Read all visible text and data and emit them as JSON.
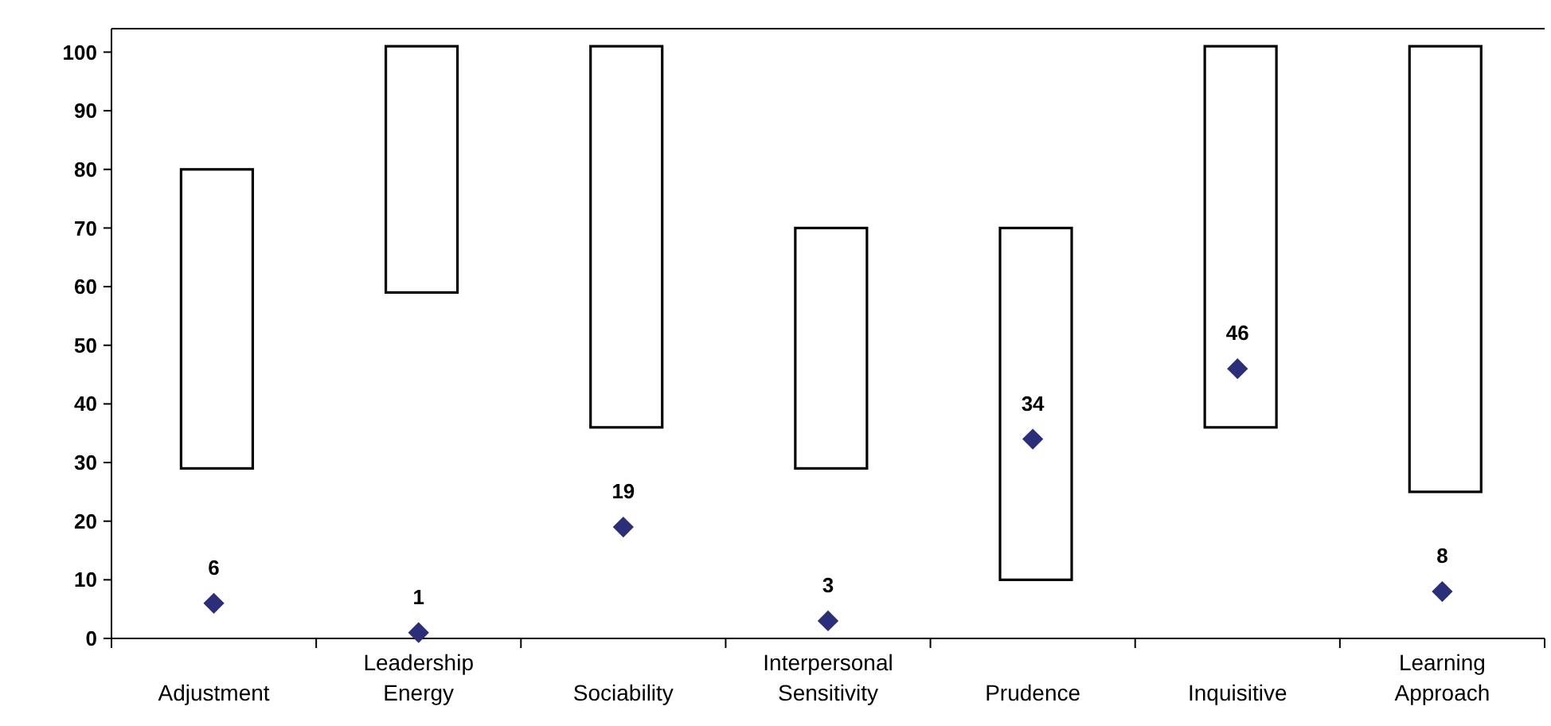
{
  "chart_data": {
    "type": "bar",
    "categories": [
      "Adjustment",
      "Leadership Energy",
      "Sociability",
      "Interpersonal Sensitivity",
      "Prudence",
      "Inquisitive",
      "Learning Approach"
    ],
    "series": [
      {
        "color": "#ffffff",
        "values": [
          51,
          42,
          65,
          41,
          60,
          65,
          76
        ],
        "base": [
          29,
          59,
          36,
          29,
          10,
          36,
          25
        ]
      },
      {
        "type": "scatter",
        "color": "#2b2f7a",
        "values": [
          6,
          1,
          19,
          3,
          34,
          46,
          8
        ],
        "value_labels": [
          "6",
          "1",
          "19",
          "3",
          "34",
          "46",
          "8"
        ]
      }
    ],
    "marker": "diamond",
    "ylim": [
      0,
      104
    ],
    "yticks": [
      0,
      10,
      20,
      30,
      40,
      50,
      60,
      70,
      80,
      90,
      100
    ],
    "grid": false
  }
}
